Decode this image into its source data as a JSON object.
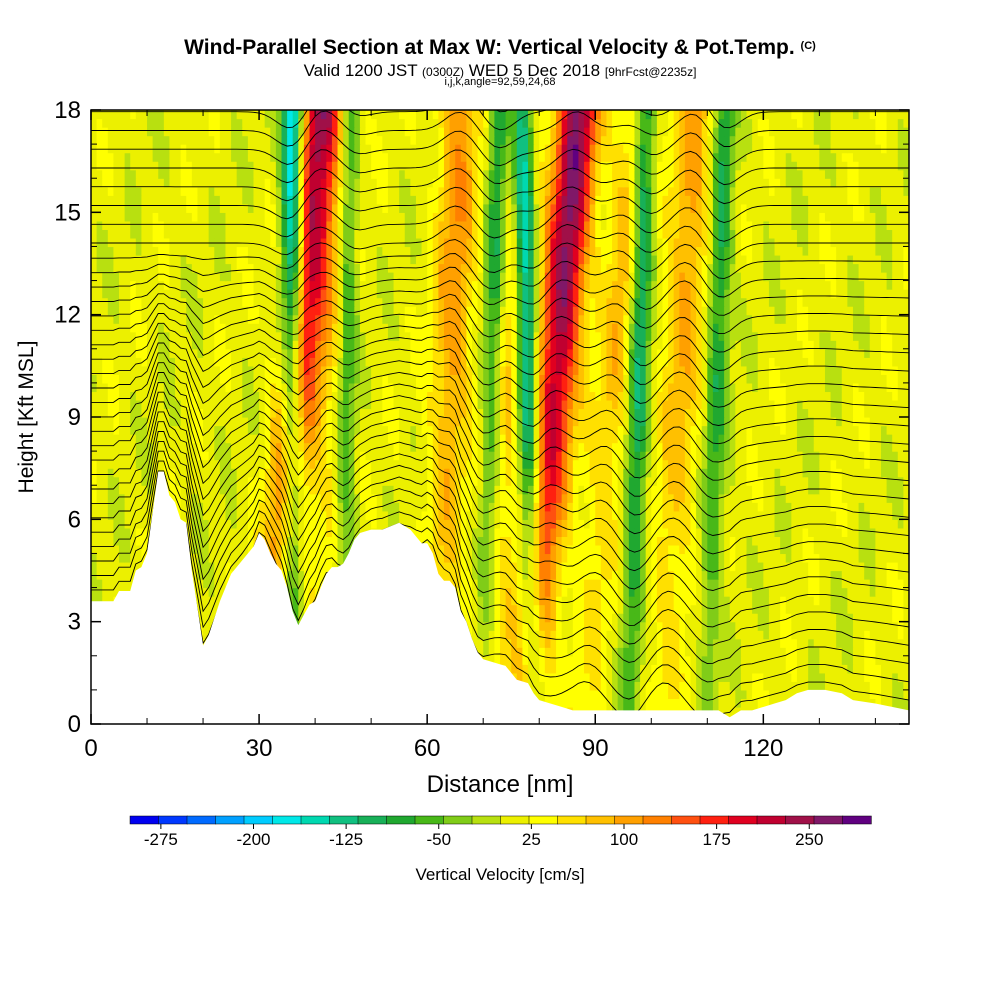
{
  "chart_data": {
    "type": "heatmap",
    "title": "Wind-Parallel Section at Max W: Vertical Velocity & Pot.Temp.",
    "title_mark": "(C)",
    "subtitle": {
      "valid_prefix": "Valid 1200 JST",
      "utc": "(0300Z)",
      "date": "WED 5 Dec 2018",
      "forecast": "[9hrFcst@2235z]"
    },
    "index_note": "i,j,k,angle=92,59,24,68",
    "xlabel": "Distance [nm]",
    "ylabel": "Height [Kft MSL]",
    "xlim": [
      0,
      146
    ],
    "ylim": [
      0,
      18
    ],
    "x_ticks": [
      0,
      30,
      60,
      90,
      120
    ],
    "y_ticks": [
      0,
      3,
      6,
      9,
      12,
      15,
      18
    ],
    "colorbar": {
      "label": "Vertical Velocity [cm/s]",
      "min": -300,
      "max": 300,
      "tick_labels": [
        -275,
        -200,
        -125,
        -50,
        25,
        100,
        175,
        250
      ],
      "colors": [
        "#0000f0",
        "#0038ff",
        "#006aff",
        "#00a0ff",
        "#00ccff",
        "#00e8e8",
        "#00d8b0",
        "#10c080",
        "#18b058",
        "#20a830",
        "#48b818",
        "#80cc18",
        "#b8e010",
        "#ecf000",
        "#ffff00",
        "#ffe000",
        "#ffc000",
        "#ffa000",
        "#ff8000",
        "#ff5010",
        "#ff2010",
        "#e00020",
        "#c00030",
        "#a01048",
        "#801868",
        "#600080"
      ]
    },
    "updraft_bands": [
      {
        "x_bottom": 32,
        "x_top": 41,
        "w": 220
      },
      {
        "x_bottom": 42,
        "x_top": 45,
        "w": 60
      },
      {
        "x_bottom": 62,
        "x_top": 66,
        "w": 100
      },
      {
        "x_bottom": 71,
        "x_top": 77,
        "w": 90
      },
      {
        "x_bottom": 78,
        "x_top": 87,
        "w": 250
      },
      {
        "x_bottom": 88,
        "x_top": 98,
        "w": 80
      },
      {
        "x_bottom": 102,
        "x_top": 108,
        "w": 90
      }
    ],
    "downdraft_bands": [
      {
        "x_bottom": 36,
        "x_top": 36,
        "w": -240
      },
      {
        "x_bottom": 45,
        "x_top": 46,
        "w": -120
      },
      {
        "x_bottom": 70,
        "x_top": 73,
        "w": -130
      },
      {
        "x_bottom": 79,
        "x_top": 77,
        "w": -230
      },
      {
        "x_bottom": 96,
        "x_top": 99,
        "w": -160
      },
      {
        "x_bottom": 110,
        "x_top": 113,
        "w": -110
      }
    ],
    "terrain_kft": [
      [
        0,
        3.6
      ],
      [
        4,
        3.6
      ],
      [
        5,
        3.9
      ],
      [
        7,
        3.9
      ],
      [
        8,
        4.5
      ],
      [
        9,
        4.6
      ],
      [
        10,
        5.0
      ],
      [
        11,
        6.2
      ],
      [
        12,
        7.4
      ],
      [
        13,
        7.4
      ],
      [
        14,
        6.7
      ],
      [
        15,
        6.5
      ],
      [
        16,
        6.0
      ],
      [
        17,
        5.9
      ],
      [
        18,
        4.5
      ],
      [
        19,
        3.4
      ],
      [
        20,
        2.3
      ],
      [
        21,
        2.6
      ],
      [
        22,
        3.1
      ],
      [
        23,
        3.6
      ],
      [
        24,
        4.0
      ],
      [
        25,
        4.4
      ],
      [
        27,
        4.8
      ],
      [
        29,
        5.2
      ],
      [
        30,
        5.6
      ],
      [
        31,
        5.4
      ],
      [
        32,
        5.0
      ],
      [
        33,
        4.7
      ],
      [
        34,
        4.5
      ],
      [
        35,
        4.0
      ],
      [
        36,
        3.3
      ],
      [
        37,
        2.9
      ],
      [
        38,
        3.2
      ],
      [
        39,
        3.5
      ],
      [
        40,
        3.6
      ],
      [
        41,
        4.0
      ],
      [
        42,
        4.4
      ],
      [
        43,
        4.6
      ],
      [
        44,
        4.6
      ],
      [
        45,
        4.7
      ],
      [
        46,
        5.0
      ],
      [
        47,
        5.4
      ],
      [
        48,
        5.6
      ],
      [
        50,
        5.7
      ],
      [
        52,
        5.7
      ],
      [
        55,
        5.9
      ],
      [
        57,
        5.7
      ],
      [
        59,
        5.3
      ],
      [
        60,
        5.3
      ],
      [
        61,
        5.0
      ],
      [
        62,
        4.4
      ],
      [
        63,
        4.2
      ],
      [
        64,
        4.2
      ],
      [
        65,
        4.0
      ],
      [
        66,
        3.3
      ],
      [
        67,
        3.0
      ],
      [
        68,
        2.5
      ],
      [
        69,
        2.1
      ],
      [
        70,
        1.9
      ],
      [
        72,
        1.8
      ],
      [
        74,
        1.7
      ],
      [
        76,
        1.3
      ],
      [
        78,
        1.2
      ],
      [
        79,
        0.9
      ],
      [
        80,
        0.7
      ],
      [
        82,
        0.6
      ],
      [
        84,
        0.5
      ],
      [
        86,
        0.4
      ],
      [
        100,
        0.4
      ],
      [
        112,
        0.4
      ],
      [
        114,
        0.2
      ],
      [
        116,
        0.4
      ],
      [
        118,
        0.4
      ],
      [
        122,
        0.6
      ],
      [
        124,
        0.7
      ],
      [
        126,
        0.9
      ],
      [
        128,
        1.0
      ],
      [
        131,
        1.0
      ],
      [
        134,
        0.9
      ],
      [
        136,
        0.7
      ],
      [
        140,
        0.6
      ],
      [
        146,
        0.4
      ]
    ]
  }
}
